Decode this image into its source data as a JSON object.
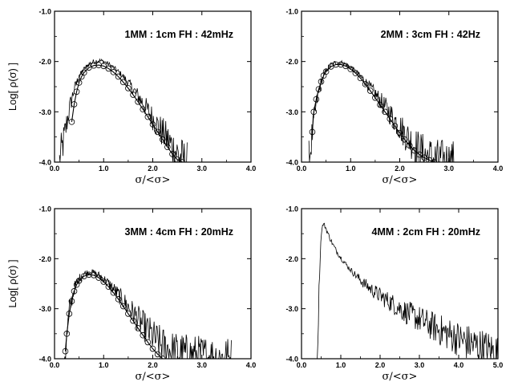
{
  "chart_data": [
    {
      "type": "line",
      "title": "1MM : 1cm FH : 42mHz",
      "xlabel": "σ/<σ>",
      "ylabel": "Log[ ρ(σ) ]",
      "xlim": [
        0.0,
        4.0
      ],
      "ylim": [
        -4.0,
        -1.0
      ],
      "xticks": [
        "0.0",
        "1.0",
        "2.0",
        "3.0",
        "4.0"
      ],
      "yticks": [
        "-1.0",
        "-2.0",
        "-3.0",
        "-4.0"
      ],
      "grid": false,
      "series": [
        {
          "kind": "noisy-line",
          "x": [
            0.1,
            0.2,
            0.3,
            0.4,
            0.5,
            0.6,
            0.7,
            0.8,
            0.9,
            1.0,
            1.1,
            1.2,
            1.3,
            1.4,
            1.5,
            1.6,
            1.7,
            1.8,
            1.9,
            2.0,
            2.1,
            2.2,
            2.3,
            2.4,
            2.5,
            2.6,
            2.7
          ],
          "y": [
            -4.0,
            -3.5,
            -2.95,
            -2.55,
            -2.3,
            -2.15,
            -2.05,
            -2.0,
            -1.98,
            -2.0,
            -2.05,
            -2.12,
            -2.2,
            -2.3,
            -2.42,
            -2.55,
            -2.68,
            -2.82,
            -2.98,
            -3.12,
            -3.28,
            -3.42,
            -3.55,
            -3.7,
            -3.82,
            -3.95,
            -4.0
          ]
        },
        {
          "kind": "fit-markers",
          "x": [
            0.35,
            0.4,
            0.45,
            0.5,
            0.55,
            0.6,
            0.7,
            0.8,
            0.9,
            1.0,
            1.1,
            1.2,
            1.3,
            1.4,
            1.5,
            1.6,
            1.7,
            1.8,
            1.9,
            2.0,
            2.1,
            2.2,
            2.3,
            2.4,
            2.5,
            2.6
          ],
          "y": [
            -3.2,
            -2.85,
            -2.6,
            -2.42,
            -2.3,
            -2.22,
            -2.12,
            -2.08,
            -2.07,
            -2.09,
            -2.14,
            -2.21,
            -2.3,
            -2.41,
            -2.53,
            -2.66,
            -2.8,
            -2.95,
            -3.1,
            -3.25,
            -3.4,
            -3.55,
            -3.7,
            -3.84,
            -3.95,
            -4.0
          ]
        }
      ]
    },
    {
      "type": "line",
      "title": "2MM : 3cm FH : 42Hz",
      "xlabel": "σ/<σ>",
      "ylabel": "",
      "xlim": [
        0.0,
        4.0
      ],
      "ylim": [
        -4.0,
        -1.0
      ],
      "xticks": [
        "0.0",
        "1.0",
        "2.0",
        "3.0",
        "4.0"
      ],
      "yticks": [
        "-1.0",
        "-2.0",
        "-3.0",
        "-4.0"
      ],
      "grid": false,
      "series": [
        {
          "kind": "noisy-line",
          "x": [
            0.15,
            0.2,
            0.3,
            0.4,
            0.5,
            0.6,
            0.7,
            0.8,
            0.9,
            1.0,
            1.1,
            1.2,
            1.3,
            1.4,
            1.5,
            1.6,
            1.7,
            1.8,
            1.9,
            2.0,
            2.1,
            2.2,
            2.3,
            2.4,
            2.5,
            2.6,
            2.7,
            2.8,
            2.9,
            3.0,
            3.1
          ],
          "y": [
            -4.0,
            -3.6,
            -2.85,
            -2.4,
            -2.18,
            -2.06,
            -2.02,
            -2.02,
            -2.06,
            -2.12,
            -2.2,
            -2.3,
            -2.4,
            -2.52,
            -2.64,
            -2.77,
            -2.9,
            -3.03,
            -3.16,
            -3.3,
            -3.43,
            -3.55,
            -3.66,
            -3.76,
            -3.84,
            -3.9,
            -3.95,
            -3.97,
            -3.98,
            -3.99,
            -4.0
          ]
        },
        {
          "kind": "fit-markers",
          "x": [
            0.22,
            0.25,
            0.3,
            0.35,
            0.4,
            0.45,
            0.5,
            0.6,
            0.7,
            0.8,
            0.9,
            1.0,
            1.1,
            1.2,
            1.3,
            1.4,
            1.5,
            1.6,
            1.7,
            1.8,
            1.9,
            2.0,
            2.1,
            2.2,
            2.3,
            2.4,
            2.5,
            2.6,
            2.7
          ],
          "y": [
            -3.4,
            -3.0,
            -2.75,
            -2.55,
            -2.4,
            -2.28,
            -2.2,
            -2.1,
            -2.06,
            -2.06,
            -2.09,
            -2.15,
            -2.23,
            -2.33,
            -2.45,
            -2.58,
            -2.72,
            -2.86,
            -3.0,
            -3.14,
            -3.28,
            -3.42,
            -3.55,
            -3.67,
            -3.77,
            -3.85,
            -3.91,
            -3.96,
            -4.0
          ]
        }
      ]
    },
    {
      "type": "line",
      "title": "3MM : 4cm FH : 20mHz",
      "xlabel": "σ/<σ>",
      "ylabel": "Log[ ρ(σ) ]",
      "xlim": [
        0.0,
        4.0
      ],
      "ylim": [
        -4.0,
        -1.0
      ],
      "xticks": [
        "0.0",
        "1.0",
        "2.0",
        "3.0",
        "4.0"
      ],
      "yticks": [
        "-1.0",
        "-2.0",
        "-3.0",
        "-4.0"
      ],
      "grid": false,
      "series": [
        {
          "kind": "noisy-line",
          "x": [
            0.2,
            0.25,
            0.3,
            0.4,
            0.5,
            0.6,
            0.7,
            0.8,
            0.9,
            1.0,
            1.1,
            1.2,
            1.3,
            1.4,
            1.5,
            1.6,
            1.7,
            1.8,
            1.9,
            2.0,
            2.1,
            2.2,
            2.3,
            2.4,
            2.5,
            2.6,
            2.7,
            2.8,
            3.0,
            3.2,
            3.4,
            3.6
          ],
          "y": [
            -4.0,
            -3.6,
            -3.05,
            -2.6,
            -2.4,
            -2.3,
            -2.27,
            -2.28,
            -2.33,
            -2.4,
            -2.5,
            -2.6,
            -2.72,
            -2.84,
            -2.96,
            -3.08,
            -3.2,
            -3.32,
            -3.44,
            -3.55,
            -3.66,
            -3.74,
            -3.8,
            -3.85,
            -3.88,
            -3.9,
            -3.92,
            -3.94,
            -3.96,
            -3.97,
            -3.99,
            -4.0
          ]
        },
        {
          "kind": "fit-markers",
          "x": [
            0.22,
            0.25,
            0.3,
            0.35,
            0.4,
            0.45,
            0.5,
            0.6,
            0.7,
            0.8,
            0.9,
            1.0,
            1.1,
            1.2,
            1.3,
            1.4,
            1.5,
            1.6,
            1.7,
            1.8,
            1.9,
            2.0,
            2.1,
            2.2
          ],
          "y": [
            -3.85,
            -3.5,
            -3.1,
            -2.85,
            -2.65,
            -2.52,
            -2.44,
            -2.35,
            -2.32,
            -2.33,
            -2.38,
            -2.46,
            -2.56,
            -2.68,
            -2.81,
            -2.95,
            -3.1,
            -3.24,
            -3.39,
            -3.53,
            -3.67,
            -3.8,
            -3.91,
            -4.0
          ]
        }
      ]
    },
    {
      "type": "line",
      "title": "4MM : 2cm FH : 20mHz",
      "xlabel": "σ/<σ>",
      "ylabel": "",
      "xlim": [
        0.0,
        5.0
      ],
      "ylim": [
        -4.0,
        -1.0
      ],
      "xticks": [
        "0.0",
        "1.0",
        "2.0",
        "3.0",
        "4.0",
        "5.0"
      ],
      "yticks": [
        "-1.0",
        "-2.0",
        "-3.0",
        "-4.0"
      ],
      "grid": false,
      "series": [
        {
          "kind": "noisy-line",
          "x": [
            0.4,
            0.45,
            0.5,
            0.55,
            0.6,
            0.7,
            0.8,
            0.9,
            1.0,
            1.2,
            1.4,
            1.6,
            1.8,
            2.0,
            2.2,
            2.4,
            2.6,
            2.8,
            3.0,
            3.2,
            3.4,
            3.6,
            3.8,
            4.0,
            4.2,
            4.4,
            4.6,
            4.8,
            5.0
          ],
          "y": [
            -4.0,
            -2.5,
            -1.5,
            -1.3,
            -1.35,
            -1.55,
            -1.72,
            -1.86,
            -1.98,
            -2.18,
            -2.35,
            -2.5,
            -2.63,
            -2.74,
            -2.84,
            -2.94,
            -3.04,
            -3.13,
            -3.21,
            -3.3,
            -3.38,
            -3.46,
            -3.53,
            -3.6,
            -3.67,
            -3.73,
            -3.79,
            -3.85,
            -3.9
          ]
        }
      ]
    }
  ]
}
